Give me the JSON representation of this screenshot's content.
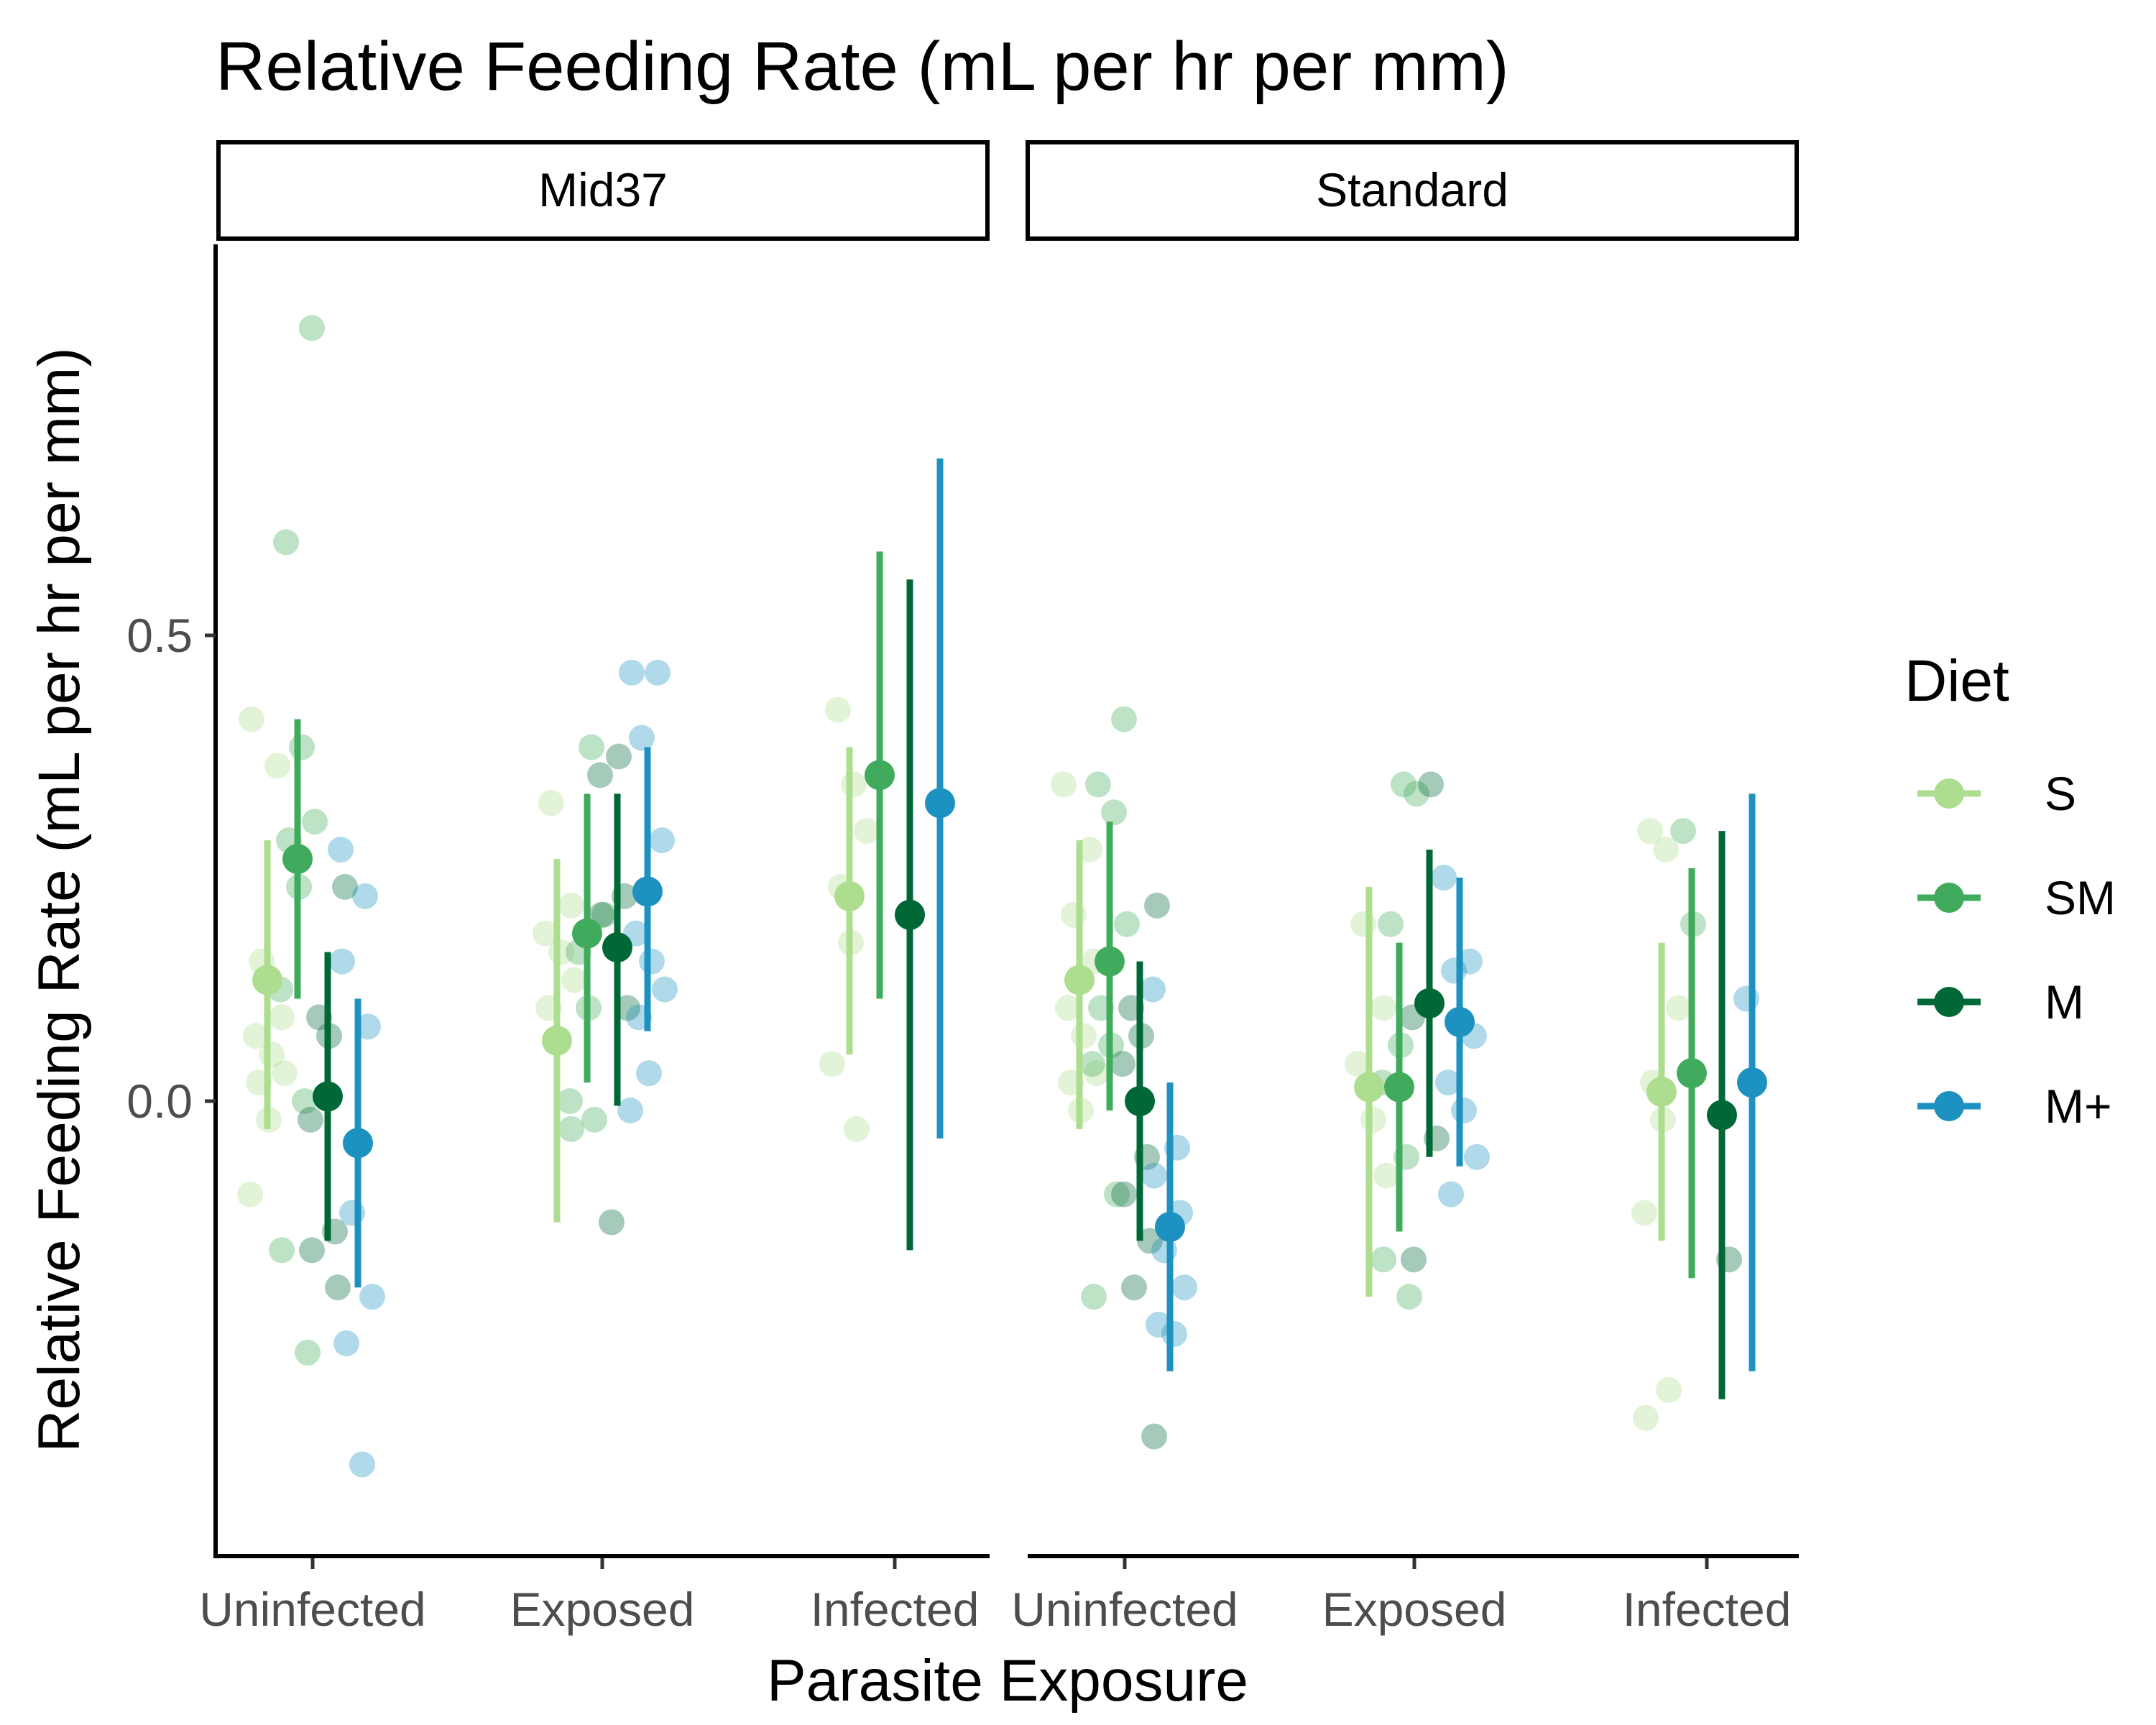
{
  "chart_data": {
    "type": "scatter",
    "title": "Relative Feeding Rate (mL per hr per mm)",
    "xlabel": "Parasite Exposure",
    "ylabel": "Relative Feeding Rate (mL per hr per mm)",
    "ylim": [
      -0.49,
      0.92
    ],
    "y_ticks": [
      0.0,
      0.5
    ],
    "y_tick_labels": [
      "0.0",
      "0.5"
    ],
    "grid": false,
    "legend_placement": "right",
    "legend": {
      "title": "Diet",
      "entries": [
        {
          "name": "S",
          "color": "#addd8e"
        },
        {
          "name": "SM",
          "color": "#41ab5d"
        },
        {
          "name": "M",
          "color": "#006837"
        },
        {
          "name": "M+",
          "color": "#1d91c0"
        }
      ]
    },
    "panels": [
      "Mid37",
      "Standard"
    ],
    "categories": [
      "Uninfected",
      "Exposed",
      "Infected"
    ],
    "series": [
      {
        "name": "S",
        "color": "#addd8e",
        "mean": [
          [
            0.13,
            0.065,
            0.22
          ],
          [
            0.13,
            0.015,
            0.01
          ]
        ],
        "lower": [
          [
            -0.03,
            -0.13,
            0.05
          ],
          [
            -0.03,
            -0.21,
            -0.15
          ]
        ],
        "upper": [
          [
            0.28,
            0.26,
            0.38
          ],
          [
            0.28,
            0.23,
            0.17
          ]
        ],
        "points": [
          [
            [
              0.41,
              0.36,
              0.15,
              0.09,
              0.07,
              0.05,
              0.03,
              0.02,
              -0.02,
              -0.1
            ],
            [
              0.32,
              0.21,
              0.18,
              0.16,
              0.13,
              0.1
            ],
            [
              0.42,
              0.34,
              0.29,
              0.23,
              0.17,
              0.04,
              -0.03
            ]
          ],
          [
            [
              0.34,
              0.27,
              0.2,
              0.15,
              0.1,
              0.07,
              0.03,
              0.02,
              -0.01
            ],
            [
              0.19,
              0.1,
              0.04,
              -0.02,
              -0.08
            ],
            [
              0.29,
              0.27,
              0.1,
              0.02,
              -0.02,
              -0.12,
              -0.31,
              -0.34
            ]
          ]
        ]
      },
      {
        "name": "SM",
        "color": "#41ab5d",
        "mean": [
          [
            0.26,
            0.18,
            0.35
          ],
          [
            0.15,
            0.015,
            0.03
          ]
        ],
        "lower": [
          [
            0.11,
            0.02,
            0.11
          ],
          [
            -0.01,
            -0.14,
            -0.19
          ]
        ],
        "upper": [
          [
            0.41,
            0.33,
            0.59
          ],
          [
            0.3,
            0.17,
            0.25
          ]
        ],
        "points": [
          [
            [
              0.83,
              0.6,
              0.38,
              0.3,
              0.28,
              0.23,
              0.12,
              0.0,
              -0.16,
              -0.27
            ],
            [
              0.38,
              0.2,
              0.16,
              0.1,
              0.0,
              -0.02,
              -0.03
            ],
            []
          ],
          [
            [
              0.41,
              0.34,
              0.31,
              0.19,
              0.1,
              0.06,
              0.04,
              -0.1,
              -0.21
            ],
            [
              0.34,
              0.33,
              0.19,
              0.06,
              0.02,
              -0.06,
              -0.17,
              -0.21
            ],
            [
              0.29,
              0.19
            ]
          ]
        ]
      },
      {
        "name": "M",
        "color": "#006837",
        "mean": [
          [
            0.005,
            0.165,
            0.2
          ],
          [
            0.0,
            0.105,
            -0.015
          ]
        ],
        "lower": [
          [
            -0.15,
            -0.005,
            -0.16
          ],
          [
            -0.15,
            -0.06,
            -0.32
          ]
        ],
        "upper": [
          [
            0.16,
            0.33,
            0.56
          ],
          [
            0.15,
            0.27,
            0.29
          ]
        ],
        "points": [
          [
            [
              0.23,
              0.09,
              0.07,
              -0.02,
              -0.14,
              -0.16,
              -0.2
            ],
            [
              0.37,
              0.35,
              0.22,
              0.2,
              0.1,
              -0.13
            ],
            []
          ],
          [
            [
              0.21,
              0.1,
              0.07,
              0.04,
              -0.06,
              -0.1,
              -0.15,
              -0.2,
              -0.36
            ],
            [
              0.34,
              0.09,
              -0.04,
              -0.17
            ],
            [
              -0.17
            ]
          ]
        ]
      },
      {
        "name": "M+",
        "color": "#1d91c0",
        "mean": [
          [
            -0.045,
            0.225,
            0.32
          ],
          [
            -0.135,
            0.085,
            0.02
          ]
        ],
        "lower": [
          [
            -0.2,
            0.075,
            -0.04
          ],
          [
            -0.29,
            -0.07,
            -0.29
          ]
        ],
        "upper": [
          [
            0.11,
            0.38,
            0.69
          ],
          [
            0.02,
            0.24,
            0.33
          ]
        ],
        "points": [
          [
            [
              0.27,
              0.22,
              0.15,
              0.08,
              -0.12,
              -0.21,
              -0.26,
              -0.39
            ],
            [
              0.46,
              0.46,
              0.39,
              0.28,
              0.18,
              0.15,
              0.12,
              0.09,
              0.03,
              -0.01
            ],
            []
          ],
          [
            [
              0.12,
              -0.05,
              -0.08,
              -0.12,
              -0.16,
              -0.2,
              -0.24,
              -0.25
            ],
            [
              0.24,
              0.15,
              0.14,
              0.07,
              0.02,
              -0.01,
              -0.06,
              -0.1
            ],
            [
              0.11
            ]
          ]
        ]
      }
    ]
  }
}
